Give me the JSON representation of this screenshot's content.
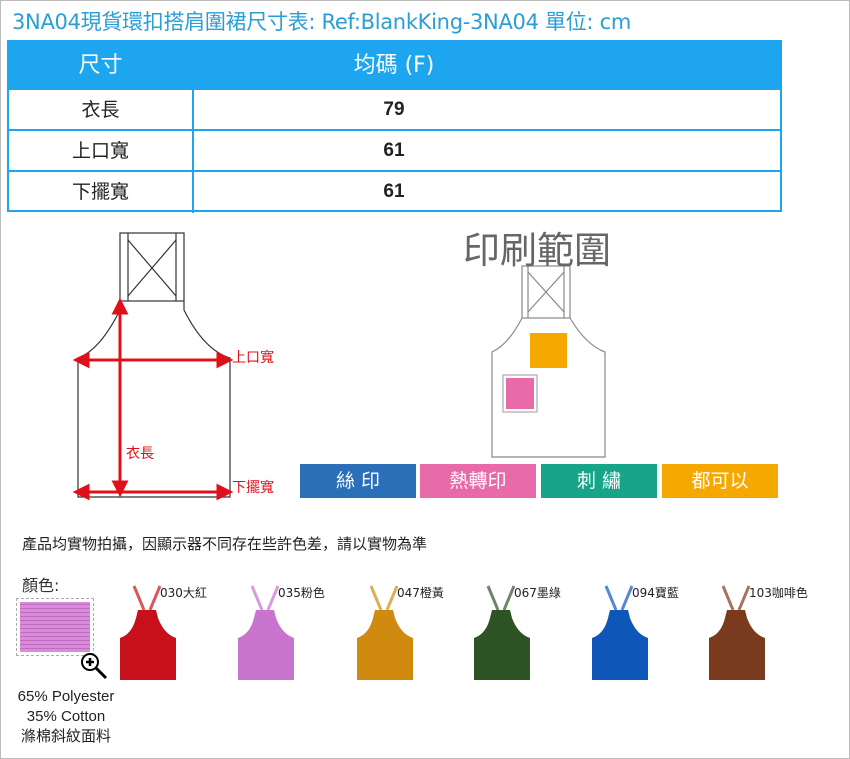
{
  "title": "3NA04現貨環扣搭肩圍裙尺寸表: Ref:BlankKing-3NA04  單位: cm",
  "table": {
    "headers": [
      "尺寸",
      "均碼 (F)"
    ],
    "rows": [
      [
        "衣長",
        "79"
      ],
      [
        "上口寬",
        "61"
      ],
      [
        "下擺寬",
        "61"
      ]
    ]
  },
  "diagram": {
    "top_width_label": "上口寬",
    "length_label": "衣長",
    "bottom_width_label": "下擺寬",
    "arrow_color": "#e0101a"
  },
  "print_area": {
    "title": "印刷範圍",
    "methods": [
      {
        "label": "絲 印",
        "color": "#2a6fb8"
      },
      {
        "label": "熱轉印",
        "color": "#e86aa8"
      },
      {
        "label": "刺 繡",
        "color": "#17a58a"
      },
      {
        "label": "都可以",
        "color": "#f5a800"
      }
    ]
  },
  "note": "產品均實物拍攝，因顯示器不同存在些許色差，請以實物為準",
  "colors_label": "顏色:",
  "fabric": {
    "line1": "65% Polyester",
    "line2": "35% Cotton",
    "line3": "滌棉斜紋面料",
    "zoom_icon": "zoom-in-icon",
    "swatch_color": "#d98ad8"
  },
  "colors": [
    {
      "label": "030大紅",
      "hex": "#c8101a"
    },
    {
      "label": "035粉色",
      "hex": "#c874cc"
    },
    {
      "label": "047橙黃",
      "hex": "#d08a10"
    },
    {
      "label": "067墨綠",
      "hex": "#2e5426"
    },
    {
      "label": "094寶藍",
      "hex": "#0e56b8"
    },
    {
      "label": "103咖啡色",
      "hex": "#7a3a1e"
    }
  ]
}
